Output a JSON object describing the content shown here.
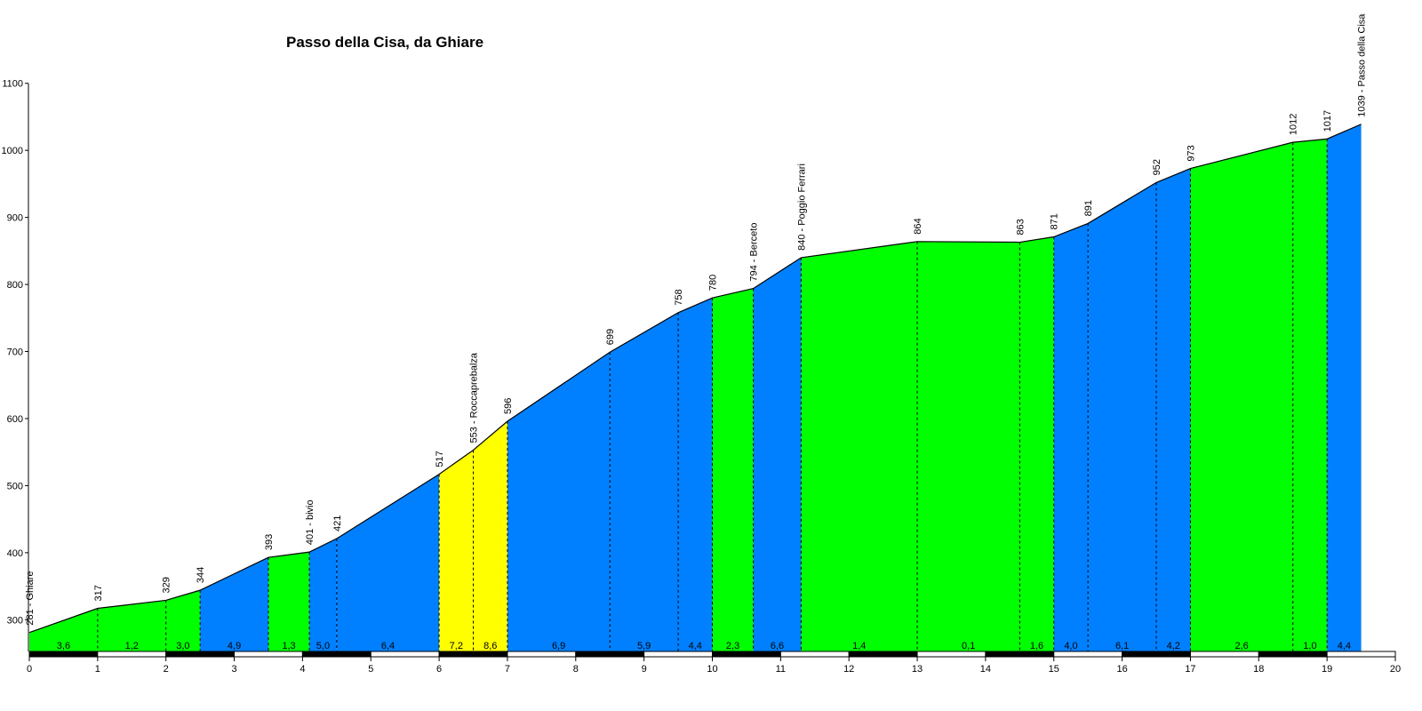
{
  "chart_data": {
    "type": "area",
    "title": "Passo della Cisa, da Ghiare",
    "xlabel": "",
    "ylabel": "",
    "xlim": [
      0,
      20
    ],
    "ylim": [
      262,
      1100
    ],
    "x_ticks": [
      "0",
      "1",
      "2",
      "3",
      "4",
      "5",
      "6",
      "7",
      "8",
      "9",
      "10",
      "11",
      "12",
      "13",
      "14",
      "15",
      "16",
      "17",
      "18",
      "19",
      "20"
    ],
    "y_ticks": [
      "300",
      "400",
      "500",
      "600",
      "700",
      "800",
      "900",
      "1000",
      "1100"
    ],
    "grid": false,
    "points": [
      {
        "km": 0.0,
        "alt": 281,
        "label": "281 - Ghiare"
      },
      {
        "km": 1.0,
        "alt": 317,
        "label": "317"
      },
      {
        "km": 2.0,
        "alt": 329,
        "label": "329"
      },
      {
        "km": 2.5,
        "alt": 344,
        "label": "344"
      },
      {
        "km": 3.5,
        "alt": 393,
        "label": "393"
      },
      {
        "km": 4.1,
        "alt": 401,
        "label": "401 - bivio"
      },
      {
        "km": 4.5,
        "alt": 421,
        "label": "421"
      },
      {
        "km": 6.0,
        "alt": 517,
        "label": "517"
      },
      {
        "km": 6.5,
        "alt": 553,
        "label": "553 - Roccaprebalza"
      },
      {
        "km": 7.0,
        "alt": 596,
        "label": "596"
      },
      {
        "km": 8.5,
        "alt": 699,
        "label": "699"
      },
      {
        "km": 9.5,
        "alt": 758,
        "label": "758"
      },
      {
        "km": 10.0,
        "alt": 780,
        "label": "780"
      },
      {
        "km": 10.6,
        "alt": 794,
        "label": "794 - Berceto"
      },
      {
        "km": 11.3,
        "alt": 840,
        "label": "840 - Poggio Ferrari"
      },
      {
        "km": 13.0,
        "alt": 864,
        "label": "864"
      },
      {
        "km": 14.5,
        "alt": 863,
        "label": "863"
      },
      {
        "km": 15.0,
        "alt": 871,
        "label": "871"
      },
      {
        "km": 15.5,
        "alt": 891,
        "label": "891"
      },
      {
        "km": 16.5,
        "alt": 952,
        "label": "952"
      },
      {
        "km": 17.0,
        "alt": 973,
        "label": "973"
      },
      {
        "km": 18.5,
        "alt": 1012,
        "label": "1012"
      },
      {
        "km": 19.0,
        "alt": 1017,
        "label": "1017"
      },
      {
        "km": 19.5,
        "alt": 1039,
        "label": "1039 - Passo della Cisa"
      }
    ],
    "segments": [
      {
        "gradient": "3,6",
        "color": "#00ff00"
      },
      {
        "gradient": "1,2",
        "color": "#00ff00"
      },
      {
        "gradient": "3,0",
        "color": "#00ff00"
      },
      {
        "gradient": "4,9",
        "color": "#0080ff"
      },
      {
        "gradient": "1,3",
        "color": "#00ff00"
      },
      {
        "gradient": "5,0",
        "color": "#0080ff"
      },
      {
        "gradient": "6,4",
        "color": "#0080ff"
      },
      {
        "gradient": "7,2",
        "color": "#ffff00"
      },
      {
        "gradient": "8,6",
        "color": "#ffff00"
      },
      {
        "gradient": "6,9",
        "color": "#0080ff"
      },
      {
        "gradient": "5,9",
        "color": "#0080ff"
      },
      {
        "gradient": "4,4",
        "color": "#0080ff"
      },
      {
        "gradient": "2,3",
        "color": "#00ff00"
      },
      {
        "gradient": "6,6",
        "color": "#0080ff"
      },
      {
        "gradient": "1,4",
        "color": "#00ff00"
      },
      {
        "gradient": "0,1",
        "color": "#00ff00"
      },
      {
        "gradient": "1,6",
        "color": "#00ff00"
      },
      {
        "gradient": "4,0",
        "color": "#0080ff"
      },
      {
        "gradient": "6,1",
        "color": "#0080ff"
      },
      {
        "gradient": "4,2",
        "color": "#0080ff"
      },
      {
        "gradient": "2,6",
        "color": "#00ff00"
      },
      {
        "gradient": "1,0",
        "color": "#00ff00"
      },
      {
        "gradient": "4,4",
        "color": "#0080ff"
      }
    ],
    "colors": {
      "easy": "#00ff00",
      "medium": "#0080ff",
      "hard": "#ffff00",
      "outline": "#000000",
      "axis_bar_dark": "#000000",
      "axis_bar_light": "#ffffff"
    }
  }
}
